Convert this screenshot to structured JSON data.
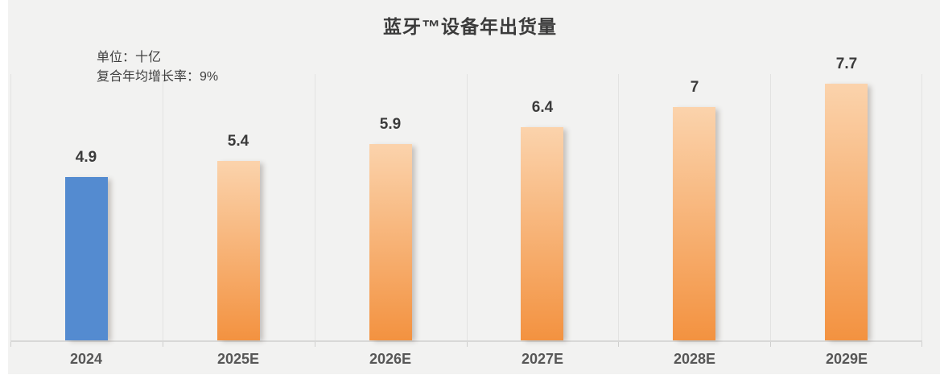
{
  "chart_data": {
    "type": "bar",
    "title": "蓝牙™设备年出货量",
    "unit_label": "单位：十亿",
    "cagr_label": "复合年均增长率：9%",
    "categories": [
      "2024",
      "2025E",
      "2026E",
      "2027E",
      "2028E",
      "2029E"
    ],
    "values": [
      4.9,
      5.4,
      5.9,
      6.4,
      7,
      7.7
    ],
    "value_labels": [
      "4.9",
      "5.4",
      "5.9",
      "6.4",
      "7",
      "7.7"
    ],
    "xlabel": "",
    "ylabel": "",
    "ylim": [
      0,
      8
    ],
    "grid": "vertical-category-separators",
    "legend_position": "none",
    "colors": {
      "bar_actual_blue": "#548BD0",
      "bar_forecast_gradient_top": "#FBD3AC",
      "bar_forecast_gradient_bottom": "#F39240",
      "panel_background": "#F2F2F1",
      "gridline": "#E3E3E2",
      "axis_line": "#D8D8D7",
      "title_text": "#3B3B3B",
      "value_label_text": "#3B3B3B",
      "axis_label_text": "#575757"
    }
  }
}
